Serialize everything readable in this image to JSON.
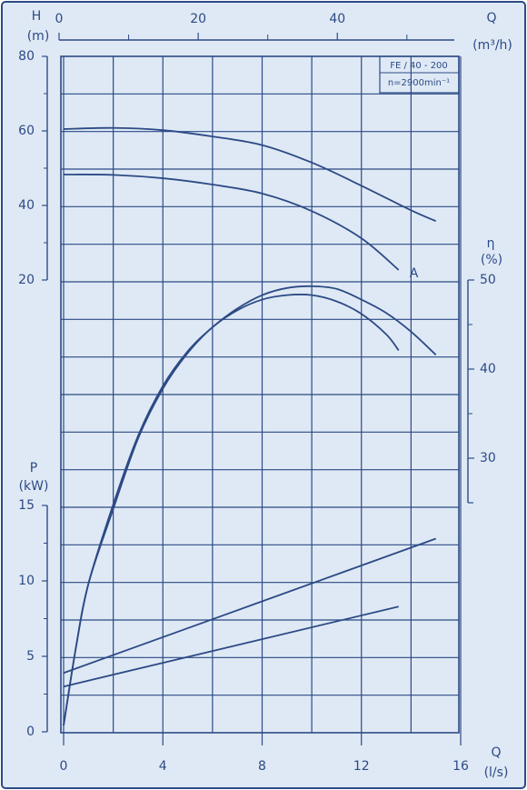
{
  "chart_data": {
    "type": "line",
    "color": "#2c4a85",
    "background": "#dfe9f5",
    "x_label": "Q",
    "x_unit": "(l/s)",
    "xlim": [
      0,
      16
    ],
    "xticks": [
      0,
      4,
      8,
      12,
      16
    ],
    "xgrid": [
      0,
      2,
      4,
      6,
      8,
      10,
      12,
      14,
      16
    ],
    "x2_label": "Q",
    "x2_unit": "(m³/h)",
    "x2lim": [
      0,
      57.6
    ],
    "x2ticks": [
      0,
      20,
      40
    ],
    "x2minor": [
      10,
      30,
      50
    ],
    "h_label": "H",
    "h_unit": "(m)",
    "hlim": [
      20,
      80
    ],
    "hticks": [
      20,
      40,
      60,
      80
    ],
    "hminor": [
      30,
      50,
      70
    ],
    "eta_label": "η",
    "eta_unit": "(%)",
    "etalim": [
      25,
      50
    ],
    "etaticks": [
      30,
      40,
      50
    ],
    "etaminor": [
      35,
      45
    ],
    "p_label": "P",
    "p_unit": "(kW)",
    "plim": [
      0,
      15
    ],
    "pticks": [
      0,
      5,
      10,
      15
    ],
    "pminor": [
      2.5,
      7.5,
      12.5
    ],
    "model": "FE / 40 - 200",
    "speed": "n=2900min⁻¹",
    "series": [
      {
        "axis": "h",
        "x": [
          0,
          2,
          4,
          6,
          8,
          10,
          12,
          14,
          15
        ],
        "values": [
          60.5,
          60.8,
          60.2,
          58.5,
          56.2,
          51.5,
          45.3,
          38.7,
          35.8
        ]
      },
      {
        "axis": "h",
        "label": "A",
        "x": [
          0,
          2,
          4,
          6,
          8,
          10,
          12,
          13.5
        ],
        "values": [
          48.3,
          48.2,
          47.3,
          45.6,
          43.2,
          38.5,
          31.2,
          22.7
        ]
      },
      {
        "axis": "eta",
        "x": [
          0,
          0.5,
          1,
          2,
          3,
          4,
          5,
          6,
          7,
          8,
          9,
          10,
          11,
          12,
          13,
          14,
          15
        ],
        "values": [
          0,
          8.8,
          15.9,
          24.8,
          32.5,
          38.1,
          42,
          44.7,
          46.8,
          48.3,
          49.1,
          49.3,
          49,
          47.8,
          46.3,
          44.2,
          41.6
        ]
      },
      {
        "axis": "eta",
        "x": [
          0,
          0.5,
          1,
          2,
          3,
          4,
          5,
          6,
          7,
          8,
          9,
          10,
          11,
          12,
          13,
          13.5
        ],
        "values": [
          0,
          8.8,
          15.9,
          24.3,
          32.2,
          37.8,
          41.8,
          44.7,
          46.6,
          47.8,
          48.3,
          48.3,
          47.6,
          46.2,
          43.9,
          42.1
        ]
      },
      {
        "axis": "p",
        "x": [
          0,
          15
        ],
        "values": [
          3.9,
          12.8
        ]
      },
      {
        "axis": "p",
        "x": [
          0,
          13.5
        ],
        "values": [
          3.0,
          8.3
        ]
      }
    ]
  }
}
